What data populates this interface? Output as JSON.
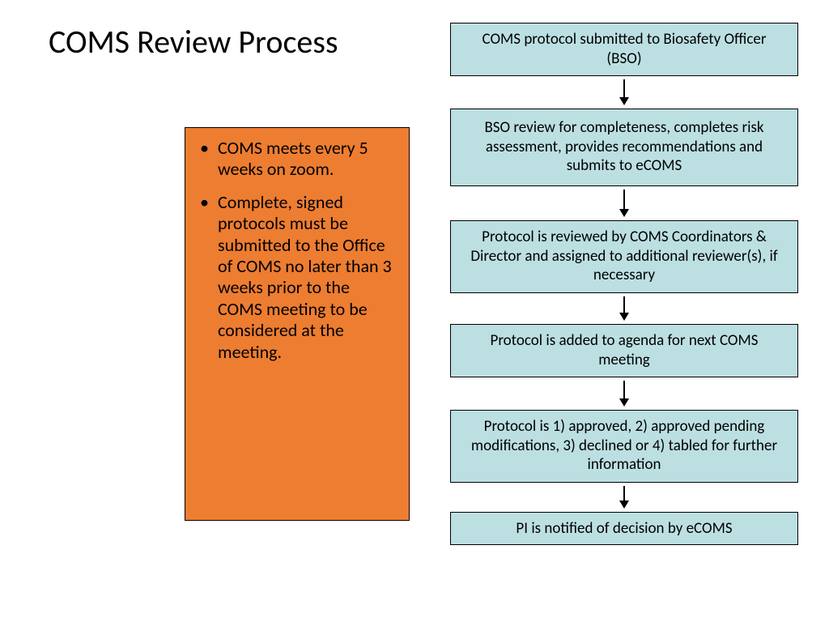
{
  "title": "COMS Review Process",
  "info_box": {
    "background_color": "#ed7d31",
    "border_color": "#000000",
    "text_color": "#000000",
    "font_size": 22,
    "bullets": [
      "COMS meets every 5 weeks on zoom.",
      "Complete, signed protocols must be submitted to the Office of COMS no later than 3 weeks prior to the COMS meeting to be considered at the meeting."
    ]
  },
  "flowchart": {
    "type": "flowchart",
    "box_background_color": "#bcdfe2",
    "box_border_color": "#000000",
    "box_text_color": "#000000",
    "box_font_size": 19,
    "arrow_color": "#000000",
    "steps": [
      {
        "text": "COMS protocol submitted to Biosafety Officer (BSO)",
        "height": 62,
        "arrow_shaft": 22
      },
      {
        "text": "BSO review for completeness, completes risk assessment, provides recommendations and submits to eCOMS",
        "height": 96,
        "arrow_shaft": 24
      },
      {
        "text": "Protocol is reviewed by COMS Coordinators & Director and assigned to additional reviewer(s), if necessary",
        "height": 90,
        "arrow_shaft": 20
      },
      {
        "text": "Protocol is added to agenda for next COMS meeting",
        "height": 66,
        "arrow_shaft": 22
      },
      {
        "text": "Protocol is 1) approved, 2) approved pending modifications, 3) declined or 4) tabled for further information",
        "height": 90,
        "arrow_shaft": 18
      },
      {
        "text": "PI is notified of decision by eCOMS",
        "height": 40,
        "arrow_shaft": 0
      }
    ]
  }
}
